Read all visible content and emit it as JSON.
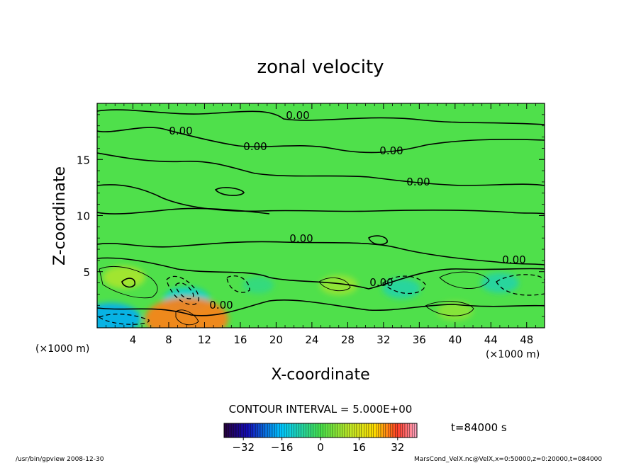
{
  "chart_data": {
    "type": "heatmap",
    "title": "zonal velocity",
    "xlabel": "X-coordinate",
    "ylabel": "Z-coordinate",
    "x_unit": "(×1000 m)",
    "z_unit": "(×1000 m)",
    "xlim": [
      0,
      50
    ],
    "ylim": [
      0,
      20
    ],
    "x_ticks": [
      4,
      8,
      12,
      16,
      20,
      24,
      28,
      32,
      36,
      40,
      44,
      48
    ],
    "y_ticks": [
      5,
      10,
      15
    ],
    "contour_interval_text": "CONTOUR INTERVAL = 5.000E+00",
    "contour_label": "0.00",
    "time_text": "t=84000 s",
    "colorbar": {
      "min": -40,
      "max": 40,
      "tick_values": [
        -32,
        -16,
        0,
        16,
        32
      ],
      "tick_labels": [
        "−32",
        "−16",
        "0",
        "16",
        "32"
      ]
    },
    "features": [
      {
        "x": 10,
        "z": 2.5,
        "value": -12
      },
      {
        "x": 3,
        "z": 4.5,
        "value": 10
      },
      {
        "x": 10,
        "z": 0.8,
        "value": 28
      },
      {
        "x": 1.5,
        "z": 0.8,
        "value": -18
      },
      {
        "x": 34,
        "z": 3.5,
        "value": -8
      },
      {
        "x": 45,
        "z": 4.0,
        "value": -8
      },
      {
        "x": 27,
        "z": 3.8,
        "value": 8
      },
      {
        "x": 18,
        "z": 3.8,
        "value": -5
      },
      {
        "x": 40,
        "z": 1.5,
        "value": 7
      }
    ]
  },
  "footer": {
    "left": "/usr/bin/gpview   2008-12-30",
    "right": "MarsCond_VelX.nc@VelX,x=0:50000,z=0:20000,t=084000"
  }
}
